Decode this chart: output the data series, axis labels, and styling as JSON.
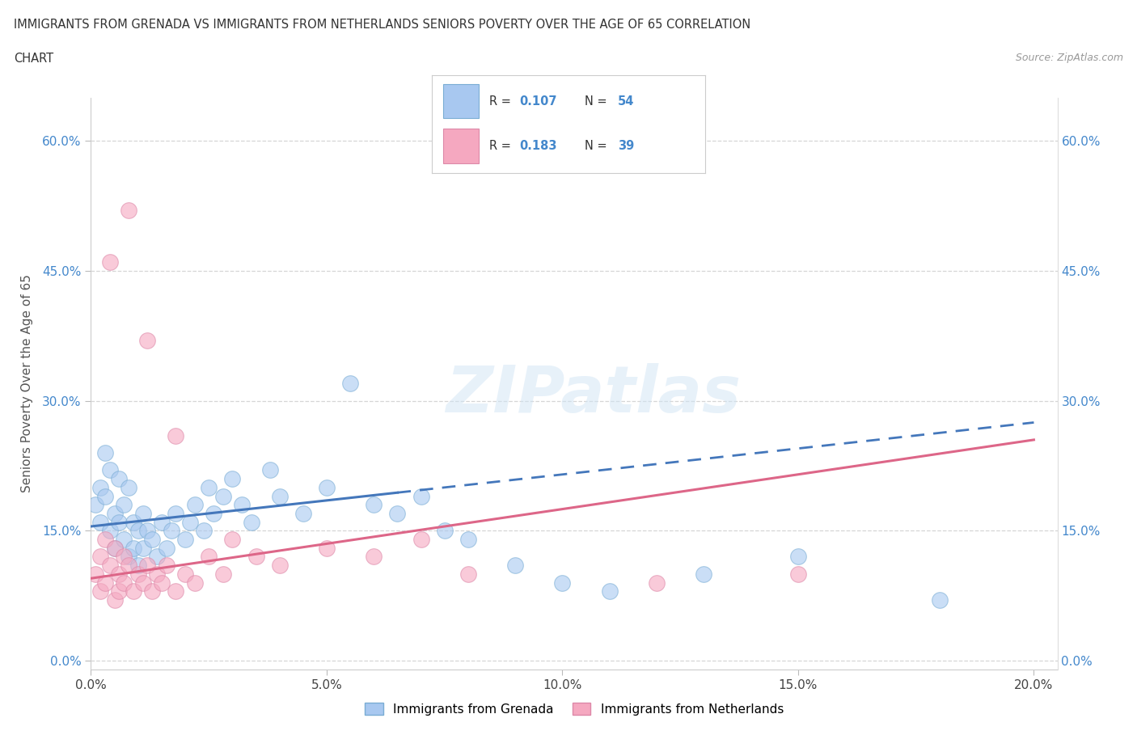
{
  "title_line1": "IMMIGRANTS FROM GRENADA VS IMMIGRANTS FROM NETHERLANDS SENIORS POVERTY OVER THE AGE OF 65 CORRELATION",
  "title_line2": "CHART",
  "source": "Source: ZipAtlas.com",
  "xlim": [
    0.0,
    0.205
  ],
  "ylim": [
    -0.01,
    0.65
  ],
  "x_ticks": [
    0.0,
    0.05,
    0.1,
    0.15,
    0.2
  ],
  "y_ticks": [
    0.0,
    0.15,
    0.3,
    0.45,
    0.6
  ],
  "grenada_color": "#a8c8f0",
  "grenada_edge": "#7aadd4",
  "netherlands_color": "#f5a8c0",
  "netherlands_edge": "#dd88a8",
  "trendline_grenada_color": "#4477bb",
  "trendline_netherlands_color": "#dd6688",
  "R_grenada": 0.107,
  "N_grenada": 54,
  "R_netherlands": 0.183,
  "N_netherlands": 39,
  "watermark": "ZIPatlas",
  "legend_label_grenada": "Immigrants from Grenada",
  "legend_label_netherlands": "Immigrants from Netherlands",
  "grenada_x": [
    0.001,
    0.002,
    0.002,
    0.003,
    0.003,
    0.004,
    0.004,
    0.005,
    0.005,
    0.006,
    0.006,
    0.007,
    0.007,
    0.008,
    0.008,
    0.009,
    0.009,
    0.01,
    0.01,
    0.011,
    0.011,
    0.012,
    0.013,
    0.014,
    0.015,
    0.016,
    0.017,
    0.018,
    0.02,
    0.021,
    0.022,
    0.024,
    0.025,
    0.026,
    0.028,
    0.03,
    0.032,
    0.034,
    0.038,
    0.04,
    0.045,
    0.05,
    0.055,
    0.06,
    0.065,
    0.07,
    0.075,
    0.08,
    0.09,
    0.1,
    0.11,
    0.13,
    0.15,
    0.18
  ],
  "grenada_y": [
    0.18,
    0.2,
    0.16,
    0.24,
    0.19,
    0.22,
    0.15,
    0.17,
    0.13,
    0.21,
    0.16,
    0.18,
    0.14,
    0.2,
    0.12,
    0.16,
    0.13,
    0.15,
    0.11,
    0.17,
    0.13,
    0.15,
    0.14,
    0.12,
    0.16,
    0.13,
    0.15,
    0.17,
    0.14,
    0.16,
    0.18,
    0.15,
    0.2,
    0.17,
    0.19,
    0.21,
    0.18,
    0.16,
    0.22,
    0.19,
    0.17,
    0.2,
    0.32,
    0.18,
    0.17,
    0.19,
    0.15,
    0.14,
    0.11,
    0.09,
    0.08,
    0.1,
    0.12,
    0.07
  ],
  "netherlands_x": [
    0.001,
    0.002,
    0.002,
    0.003,
    0.003,
    0.004,
    0.005,
    0.005,
    0.006,
    0.006,
    0.007,
    0.007,
    0.008,
    0.009,
    0.01,
    0.011,
    0.012,
    0.013,
    0.014,
    0.015,
    0.016,
    0.018,
    0.02,
    0.022,
    0.025,
    0.028,
    0.03,
    0.035,
    0.04,
    0.05,
    0.06,
    0.07,
    0.08,
    0.12,
    0.15,
    0.004,
    0.008,
    0.012,
    0.018
  ],
  "netherlands_y": [
    0.1,
    0.12,
    0.08,
    0.14,
    0.09,
    0.11,
    0.13,
    0.07,
    0.1,
    0.08,
    0.12,
    0.09,
    0.11,
    0.08,
    0.1,
    0.09,
    0.11,
    0.08,
    0.1,
    0.09,
    0.11,
    0.08,
    0.1,
    0.09,
    0.12,
    0.1,
    0.14,
    0.12,
    0.11,
    0.13,
    0.12,
    0.14,
    0.1,
    0.09,
    0.1,
    0.46,
    0.52,
    0.37,
    0.26
  ],
  "trend_gren_y0": 0.155,
  "trend_gren_y1": 0.275,
  "trend_neth_y0": 0.095,
  "trend_neth_y1": 0.255
}
